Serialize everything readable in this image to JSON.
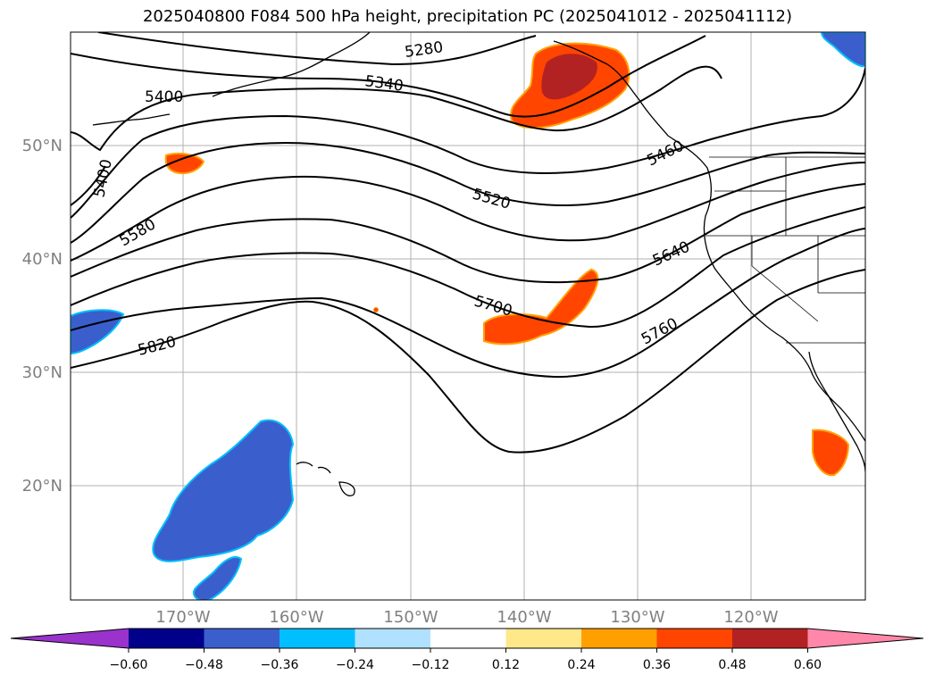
{
  "map": {
    "title": "2025040800 F084 500 hPa height, precipitation PC (2025041012 - 2025041112)",
    "lat_labels": [
      "50°N",
      "40°N",
      "30°N",
      "20°N"
    ],
    "lon_labels": [
      "170°W",
      "160°W",
      "150°W",
      "140°W",
      "130°W",
      "120°W"
    ],
    "contour_labels": [
      "5280",
      "5340",
      "5400",
      "5400",
      "5460",
      "5520",
      "5580",
      "5640",
      "5700",
      "5760",
      "5820"
    ],
    "colorbar": {
      "tick_labels": [
        "−0.60",
        "−0.48",
        "−0.36",
        "−0.24",
        "−0.12",
        "0.12",
        "0.24",
        "0.36",
        "0.48",
        "0.60"
      ],
      "colors": [
        "#9933cc",
        "#00008b",
        "#3a5fcd",
        "#00bfff",
        "#b0e2ff",
        "#ffffff",
        "#ffe88a",
        "#ffa000",
        "#ff4500",
        "#b22222",
        "#ff88aa"
      ]
    }
  }
}
